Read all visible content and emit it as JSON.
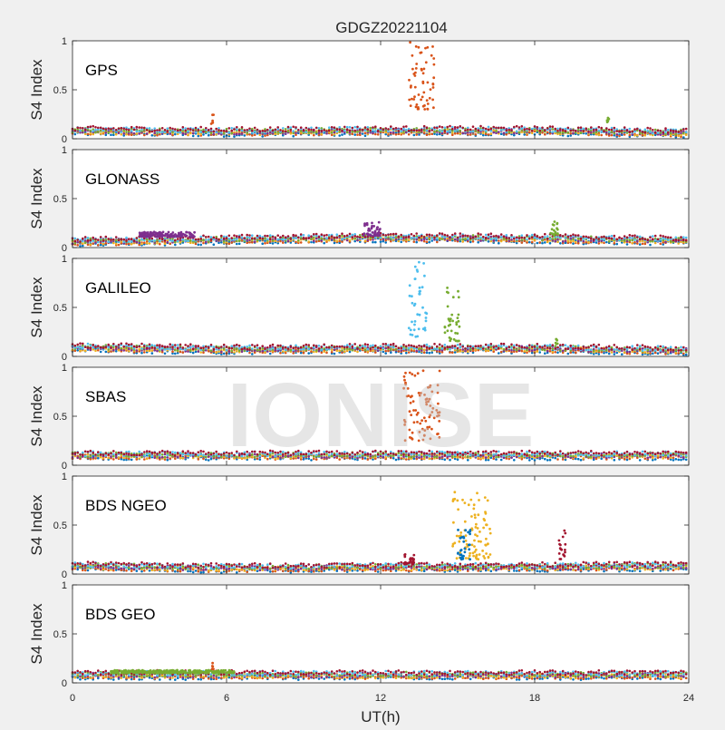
{
  "figure": {
    "title": "GDGZ20221104",
    "xlabel": "UT(h)",
    "watermark": "IONISE",
    "background": "#f0f0f0"
  },
  "chart_data": {
    "type": "scatter",
    "title": "GDGZ20221104",
    "xlabel": "UT(h)",
    "ylabel": "S4 Index",
    "xlim": [
      0,
      24
    ],
    "ylim": [
      0,
      1
    ],
    "xticks": [
      0,
      6,
      12,
      18,
      24
    ],
    "yticks": [
      0,
      0.5,
      1
    ],
    "grid": false,
    "series_colors": [
      "#0072BD",
      "#D95319",
      "#EDB120",
      "#7E2F8E",
      "#77AC30",
      "#4DBEEE",
      "#A2142F"
    ],
    "panels": [
      {
        "label": "GPS",
        "baseline": [
          [
            0,
            0.08
          ],
          [
            6,
            0.07
          ],
          [
            12,
            0.08
          ],
          [
            18,
            0.08
          ],
          [
            24,
            0.06
          ]
        ],
        "events": [
          {
            "color": "#D95319",
            "t_start": 13.1,
            "t_end": 14.1,
            "s4_min": 0.3,
            "s4_max": 1.0
          },
          {
            "color": "#D95319",
            "t_start": 5.4,
            "t_end": 5.5,
            "s4_min": 0.15,
            "s4_max": 0.27
          },
          {
            "color": "#77AC30",
            "t_start": 20.8,
            "t_end": 20.9,
            "s4_min": 0.15,
            "s4_max": 0.22
          }
        ]
      },
      {
        "label": "GLONASS",
        "baseline": [
          [
            0,
            0.06
          ],
          [
            6,
            0.08
          ],
          [
            12,
            0.1
          ],
          [
            18,
            0.09
          ],
          [
            24,
            0.07
          ]
        ],
        "events": [
          {
            "color": "#7E2F8E",
            "t_start": 11.3,
            "t_end": 12.0,
            "s4_min": 0.12,
            "s4_max": 0.26
          },
          {
            "color": "#77AC30",
            "t_start": 18.6,
            "t_end": 18.9,
            "s4_min": 0.12,
            "s4_max": 0.3
          },
          {
            "color": "#7E2F8E",
            "t_start": 2.6,
            "t_end": 4.8,
            "s4_min": 0.11,
            "s4_max": 0.16
          }
        ]
      },
      {
        "label": "GALILEO",
        "baseline": [
          [
            0,
            0.09
          ],
          [
            6,
            0.07
          ],
          [
            12,
            0.08
          ],
          [
            18,
            0.08
          ],
          [
            24,
            0.06
          ]
        ],
        "events": [
          {
            "color": "#4DBEEE",
            "t_start": 13.1,
            "t_end": 13.8,
            "s4_min": 0.2,
            "s4_max": 0.97
          },
          {
            "color": "#77AC30",
            "t_start": 14.5,
            "t_end": 15.1,
            "s4_min": 0.15,
            "s4_max": 0.72
          },
          {
            "color": "#77AC30",
            "t_start": 18.8,
            "t_end": 18.9,
            "s4_min": 0.12,
            "s4_max": 0.18
          }
        ]
      },
      {
        "label": "SBAS",
        "baseline": [
          [
            0,
            0.1
          ],
          [
            6,
            0.1
          ],
          [
            12,
            0.1
          ],
          [
            18,
            0.1
          ],
          [
            24,
            0.1
          ]
        ],
        "events": [
          {
            "color": "#D95319",
            "t_start": 12.9,
            "t_end": 14.3,
            "s4_min": 0.25,
            "s4_max": 0.98
          }
        ]
      },
      {
        "label": "BDS NGEO",
        "baseline": [
          [
            0,
            0.08
          ],
          [
            6,
            0.06
          ],
          [
            12,
            0.07
          ],
          [
            18,
            0.07
          ],
          [
            24,
            0.08
          ]
        ],
        "events": [
          {
            "color": "#EDB120",
            "t_start": 14.8,
            "t_end": 16.3,
            "s4_min": 0.15,
            "s4_max": 0.85
          },
          {
            "color": "#0072BD",
            "t_start": 15.0,
            "t_end": 15.5,
            "s4_min": 0.15,
            "s4_max": 0.5
          },
          {
            "color": "#A2142F",
            "t_start": 18.9,
            "t_end": 19.2,
            "s4_min": 0.15,
            "s4_max": 0.5
          },
          {
            "color": "#A2142F",
            "t_start": 12.9,
            "t_end": 13.3,
            "s4_min": 0.1,
            "s4_max": 0.22
          }
        ]
      },
      {
        "label": "BDS GEO",
        "baseline": [
          [
            0,
            0.08
          ],
          [
            6,
            0.08
          ],
          [
            12,
            0.08
          ],
          [
            18,
            0.08
          ],
          [
            24,
            0.08
          ]
        ],
        "events": [
          {
            "color": "#77AC30",
            "t_start": 1.5,
            "t_end": 6.3,
            "s4_min": 0.1,
            "s4_max": 0.13
          },
          {
            "color": "#D95319",
            "t_start": 5.4,
            "t_end": 5.5,
            "s4_min": 0.14,
            "s4_max": 0.22
          }
        ]
      }
    ]
  }
}
